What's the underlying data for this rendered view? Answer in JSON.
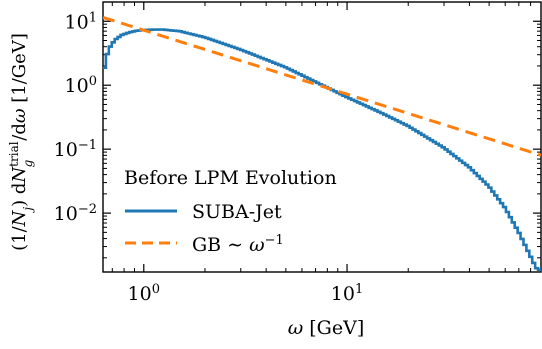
{
  "chart_data": {
    "type": "line",
    "title": "",
    "xlabel": "ω [GeV]",
    "ylabel": "(1/N_j) dN_g^trial / dω [1/GeV]",
    "xscale": "log",
    "yscale": "log",
    "xlim": [
      0.63,
      90
    ],
    "ylim": [
      0.0012,
      20
    ],
    "grid": false,
    "x_ticks": [
      {
        "value": 1,
        "label": "10^0"
      },
      {
        "value": 10,
        "label": "10^1"
      }
    ],
    "y_ticks": [
      {
        "value": 0.01,
        "label": "10^-2"
      },
      {
        "value": 0.1,
        "label": "10^-1"
      },
      {
        "value": 1,
        "label": "10^0"
      },
      {
        "value": 10,
        "label": "10^1"
      }
    ],
    "legend": {
      "title": "Before LPM Evolution",
      "placement": "lower-left"
    },
    "series": [
      {
        "name": "SUBA-Jet",
        "style": "solid-step",
        "color": "#1f77b4",
        "x": [
          0.63,
          0.65,
          0.68,
          0.72,
          0.78,
          0.85,
          0.92,
          1.0,
          1.1,
          1.25,
          1.5,
          2.0,
          3.0,
          5.0,
          10.0,
          15.0,
          20.0,
          30.0,
          40.0,
          50.0,
          60.0,
          70.0,
          80.0,
          85.0,
          88.0,
          90.0
        ],
        "values": [
          1.3,
          2.6,
          3.9,
          5.1,
          6.1,
          6.7,
          7.1,
          7.3,
          7.4,
          7.4,
          7.0,
          5.6,
          3.6,
          1.9,
          0.65,
          0.36,
          0.23,
          0.105,
          0.052,
          0.026,
          0.012,
          0.005,
          0.0021,
          0.0014,
          0.0013,
          0.0013
        ]
      },
      {
        "name": "GB ∼ ω^{-1}",
        "style": "dashed",
        "color": "#ff7f0e",
        "x": [
          0.63,
          90
        ],
        "values": [
          11.5,
          0.0805
        ]
      }
    ]
  }
}
